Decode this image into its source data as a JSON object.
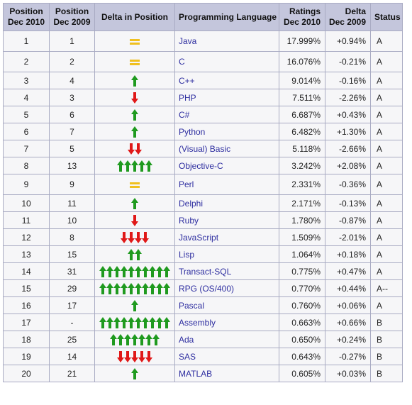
{
  "header": {
    "pos_2010": [
      "Position",
      "Dec 2010"
    ],
    "pos_2009": [
      "Position",
      "Dec 2009"
    ],
    "delta_pos": "Delta in Position",
    "language": "Programming Language",
    "ratings": [
      "Ratings",
      "Dec 2010"
    ],
    "delta": [
      "Delta",
      "Dec 2009"
    ],
    "status": "Status"
  },
  "colors": {
    "up": "#1f9a1f",
    "down": "#e01818",
    "same": "#f0c020",
    "link": "#2e2ea0",
    "header_bg": "#c4c6dc"
  },
  "rows": [
    {
      "pos2010": "1",
      "pos2009": "1",
      "change": {
        "dir": "same",
        "count": 1
      },
      "lang": "Java",
      "rating": "17.999%",
      "delta": "+0.94%",
      "status": "A"
    },
    {
      "pos2010": "2",
      "pos2009": "2",
      "change": {
        "dir": "same",
        "count": 1
      },
      "lang": "C",
      "rating": "16.076%",
      "delta": "-0.21%",
      "status": "A"
    },
    {
      "pos2010": "3",
      "pos2009": "4",
      "change": {
        "dir": "up",
        "count": 1
      },
      "lang": "C++",
      "rating": "9.014%",
      "delta": "-0.16%",
      "status": "A"
    },
    {
      "pos2010": "4",
      "pos2009": "3",
      "change": {
        "dir": "down",
        "count": 1
      },
      "lang": "PHP",
      "rating": "7.511%",
      "delta": "-2.26%",
      "status": "A"
    },
    {
      "pos2010": "5",
      "pos2009": "6",
      "change": {
        "dir": "up",
        "count": 1
      },
      "lang": "C#",
      "rating": "6.687%",
      "delta": "+0.43%",
      "status": "A"
    },
    {
      "pos2010": "6",
      "pos2009": "7",
      "change": {
        "dir": "up",
        "count": 1
      },
      "lang": "Python",
      "rating": "6.482%",
      "delta": "+1.30%",
      "status": "A"
    },
    {
      "pos2010": "7",
      "pos2009": "5",
      "change": {
        "dir": "down",
        "count": 2
      },
      "lang": "(Visual) Basic",
      "rating": "5.118%",
      "delta": "-2.66%",
      "status": "A"
    },
    {
      "pos2010": "8",
      "pos2009": "13",
      "change": {
        "dir": "up",
        "count": 5
      },
      "lang": "Objective-C",
      "rating": "3.242%",
      "delta": "+2.08%",
      "status": "A"
    },
    {
      "pos2010": "9",
      "pos2009": "9",
      "change": {
        "dir": "same",
        "count": 1
      },
      "lang": "Perl",
      "rating": "2.331%",
      "delta": "-0.36%",
      "status": "A"
    },
    {
      "pos2010": "10",
      "pos2009": "11",
      "change": {
        "dir": "up",
        "count": 1
      },
      "lang": "Delphi",
      "rating": "2.171%",
      "delta": "-0.13%",
      "status": "A"
    },
    {
      "pos2010": "11",
      "pos2009": "10",
      "change": {
        "dir": "down",
        "count": 1
      },
      "lang": "Ruby",
      "rating": "1.780%",
      "delta": "-0.87%",
      "status": "A"
    },
    {
      "pos2010": "12",
      "pos2009": "8",
      "change": {
        "dir": "down",
        "count": 4
      },
      "lang": "JavaScript",
      "rating": "1.509%",
      "delta": "-2.01%",
      "status": "A"
    },
    {
      "pos2010": "13",
      "pos2009": "15",
      "change": {
        "dir": "up",
        "count": 2
      },
      "lang": "Lisp",
      "rating": "1.064%",
      "delta": "+0.18%",
      "status": "A"
    },
    {
      "pos2010": "14",
      "pos2009": "31",
      "change": {
        "dir": "up",
        "count": 10
      },
      "lang": "Transact-SQL",
      "rating": "0.775%",
      "delta": "+0.47%",
      "status": "A"
    },
    {
      "pos2010": "15",
      "pos2009": "29",
      "change": {
        "dir": "up",
        "count": 10
      },
      "lang": "RPG (OS/400)",
      "rating": "0.770%",
      "delta": "+0.44%",
      "status": "A--"
    },
    {
      "pos2010": "16",
      "pos2009": "17",
      "change": {
        "dir": "up",
        "count": 1
      },
      "lang": "Pascal",
      "rating": "0.760%",
      "delta": "+0.06%",
      "status": "A"
    },
    {
      "pos2010": "17",
      "pos2009": "-",
      "change": {
        "dir": "up",
        "count": 10
      },
      "lang": "Assembly",
      "rating": "0.663%",
      "delta": "+0.66%",
      "status": "B"
    },
    {
      "pos2010": "18",
      "pos2009": "25",
      "change": {
        "dir": "up",
        "count": 7
      },
      "lang": "Ada",
      "rating": "0.650%",
      "delta": "+0.24%",
      "status": "B"
    },
    {
      "pos2010": "19",
      "pos2009": "14",
      "change": {
        "dir": "down",
        "count": 5
      },
      "lang": "SAS",
      "rating": "0.643%",
      "delta": "-0.27%",
      "status": "B"
    },
    {
      "pos2010": "20",
      "pos2009": "21",
      "change": {
        "dir": "up",
        "count": 1
      },
      "lang": "MATLAB",
      "rating": "0.605%",
      "delta": "+0.03%",
      "status": "B"
    }
  ]
}
